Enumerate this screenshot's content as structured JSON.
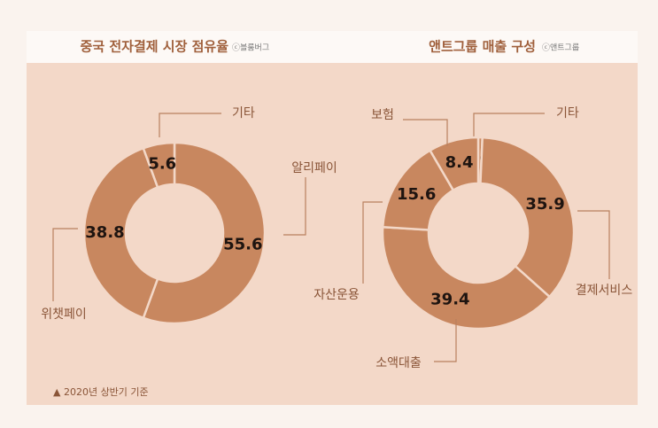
{
  "chart_data": [
    {
      "type": "pie",
      "title": "중국 전자결제 시장 점유율",
      "source": "ⓒ블룸버그",
      "categories": [
        "알리페이",
        "위챗페이",
        "기타"
      ],
      "values": [
        55.6,
        38.8,
        5.6
      ],
      "color": "#c8875f"
    },
    {
      "type": "pie",
      "title": "앤트그룹 매출 구성",
      "source": "ⓒ앤트그룹",
      "categories": [
        "기타",
        "결제서비스",
        "소액대출",
        "자산운용",
        "보험"
      ],
      "values": [
        0.7,
        35.9,
        39.4,
        15.6,
        8.4
      ],
      "color": "#c8875f"
    }
  ],
  "footnote": "▲ 2020년 상반기 기준"
}
